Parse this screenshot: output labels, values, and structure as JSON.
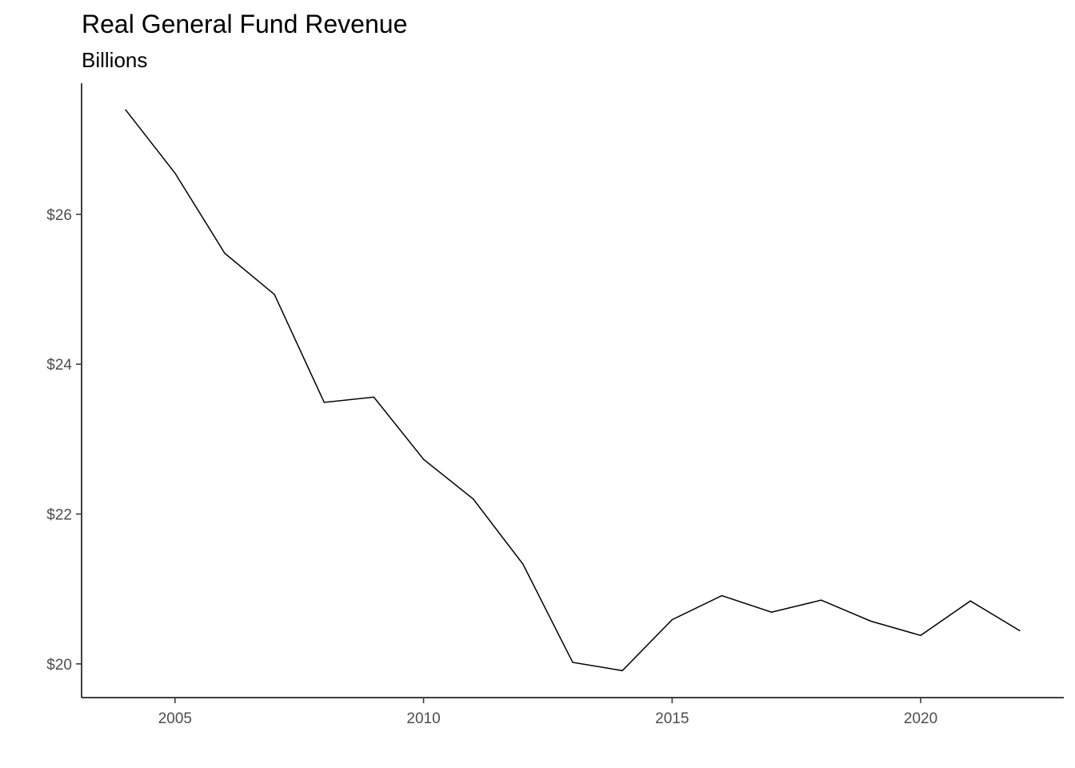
{
  "chart_data": {
    "type": "line",
    "title": "Real General Fund Revenue",
    "subtitle": "Billions",
    "xlabel": "",
    "ylabel": "",
    "x": [
      2004,
      2005,
      2006,
      2007,
      2008,
      2009,
      2010,
      2011,
      2012,
      2013,
      2014,
      2015,
      2016,
      2017,
      2018,
      2019,
      2020,
      2021,
      2022
    ],
    "series": [
      {
        "values": [
          27.4,
          26.55,
          25.48,
          24.93,
          23.49,
          23.56,
          22.73,
          22.2,
          21.33,
          20.02,
          19.91,
          20.59,
          20.91,
          20.69,
          20.85,
          20.57,
          20.38,
          20.84,
          20.44
        ]
      }
    ],
    "xlim": [
      2003.12,
      2022.88
    ],
    "ylim": [
      19.55,
      27.75
    ],
    "x_ticks": [
      2005,
      2010,
      2015,
      2020
    ],
    "x_tick_labels": [
      "2005",
      "2010",
      "2015",
      "2020"
    ],
    "y_ticks": [
      20,
      22,
      24,
      26
    ],
    "y_tick_labels": [
      "$20",
      "$22",
      "$24",
      "$26"
    ],
    "grid": false,
    "legend": "none",
    "line_color": "#000000"
  }
}
